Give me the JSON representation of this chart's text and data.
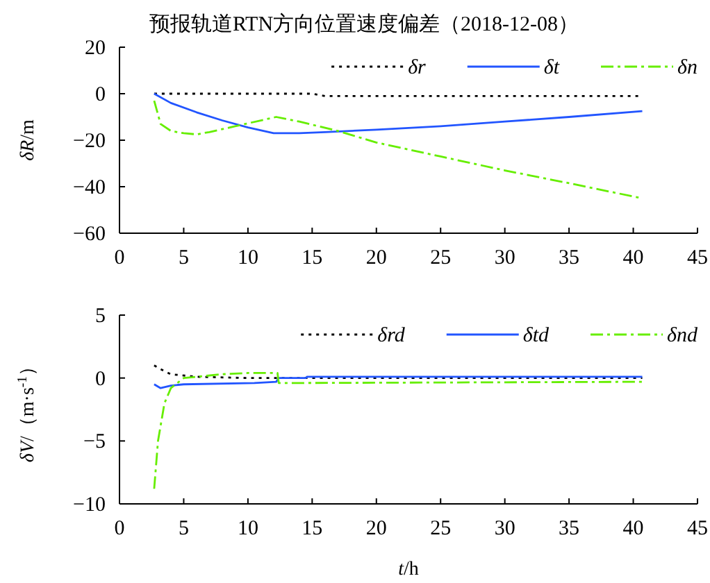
{
  "chart_data": [
    {
      "type": "line",
      "title": "预报轨道RTN方向位置速度偏差（2018-12-08）",
      "ylabel": "*δR*/m",
      "xlim": [
        0,
        45
      ],
      "xticks": [
        0,
        5,
        10,
        15,
        20,
        25,
        30,
        35,
        40,
        45
      ],
      "ylim": [
        -60,
        20
      ],
      "yticks": [
        -60,
        -40,
        -20,
        0,
        20
      ],
      "legend": "top right",
      "grid": false,
      "series": [
        {
          "name": "δr",
          "color": "#000000",
          "line_style": "dotted",
          "x": [
            2.7,
            15,
            16,
            40.7
          ],
          "values": [
            0,
            0,
            -1,
            -1
          ]
        },
        {
          "name": "δt",
          "color": "#2255ff",
          "line_style": "solid",
          "x": [
            2.7,
            4,
            6,
            8,
            10,
            12,
            14,
            16,
            20,
            25,
            30,
            35,
            40.7
          ],
          "values": [
            0,
            -4,
            -8,
            -11.5,
            -14.5,
            -17,
            -17,
            -16.5,
            -15.5,
            -14,
            -12,
            -10,
            -7.5
          ]
        },
        {
          "name": "δn",
          "color": "#66ee00",
          "line_style": "dashed",
          "x": [
            2.7,
            3.2,
            4,
            5,
            6,
            7,
            9,
            11,
            12.2,
            14,
            17,
            20,
            25,
            30,
            35,
            40.7
          ],
          "values": [
            -3,
            -13,
            -16,
            -17,
            -17.5,
            -16.5,
            -14,
            -11.5,
            -10,
            -12,
            -16,
            -21,
            -27,
            -33,
            -38.5,
            -45
          ]
        }
      ]
    },
    {
      "type": "line",
      "xlabel": "*t*/h",
      "ylabel": "*δV*/（m·s$^{-1}$）",
      "xlim": [
        0,
        45
      ],
      "xticks": [
        0,
        5,
        10,
        15,
        20,
        25,
        30,
        35,
        40,
        45
      ],
      "ylim": [
        -10,
        5
      ],
      "yticks": [
        -10,
        -5,
        0,
        5
      ],
      "legend": "top right",
      "grid": false,
      "series": [
        {
          "name": "δrd",
          "color": "#000000",
          "line_style": "dotted",
          "x": [
            2.7,
            3.2,
            4,
            6,
            10,
            12.3,
            40.7
          ],
          "values": [
            1,
            0.7,
            0.3,
            0.1,
            0,
            0,
            0
          ]
        },
        {
          "name": "δtd",
          "color": "#2255ff",
          "line_style": "solid",
          "x": [
            2.7,
            3.2,
            4,
            5,
            10.5,
            12.2,
            12.4,
            14.5,
            14.6,
            40.7
          ],
          "values": [
            -0.5,
            -0.8,
            -0.6,
            -0.5,
            -0.4,
            -0.3,
            0,
            0,
            0.1,
            0.1
          ]
        },
        {
          "name": "δnd",
          "color": "#66ee00",
          "line_style": "dashed",
          "x": [
            2.7,
            3,
            3.5,
            4,
            5,
            6,
            8,
            10,
            12.3,
            12.4,
            40.7
          ],
          "values": [
            -8.8,
            -5,
            -2,
            -0.8,
            0,
            0.1,
            0.3,
            0.4,
            0.4,
            -0.4,
            -0.3
          ]
        }
      ]
    }
  ]
}
